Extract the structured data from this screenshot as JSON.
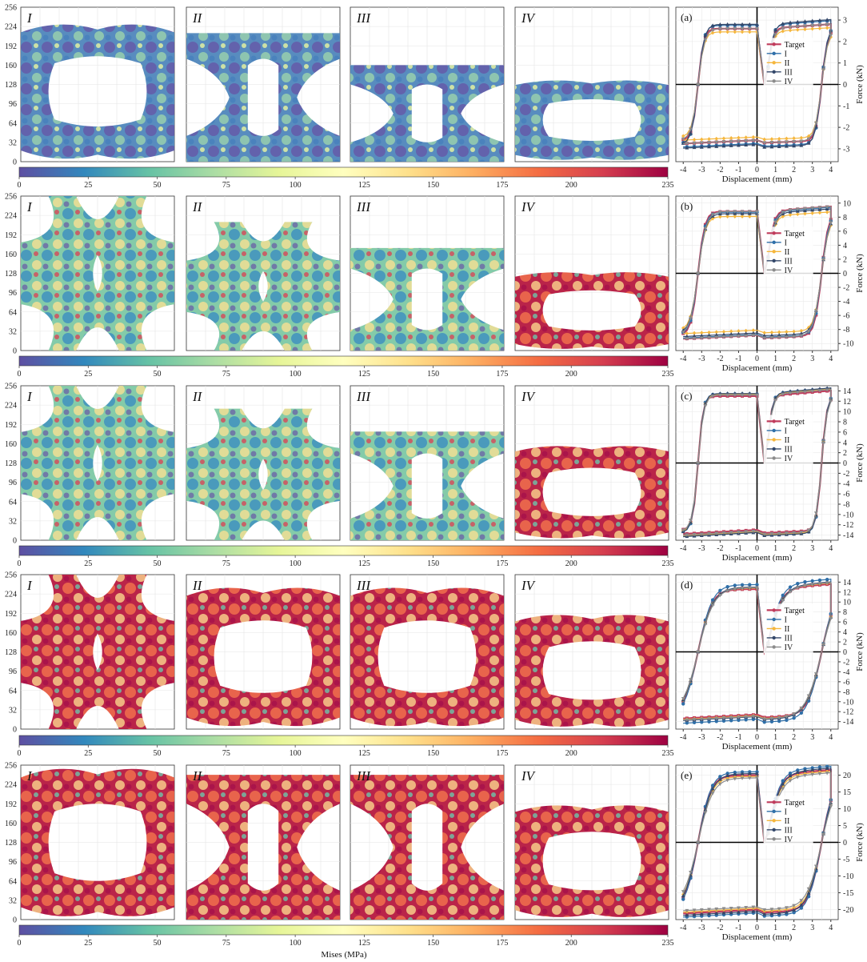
{
  "colorbar": {
    "label": "Mises (MPa)",
    "ticks": [
      0,
      25,
      50,
      75,
      100,
      125,
      150,
      175,
      200,
      235
    ],
    "stops": [
      "#5e4fa2",
      "#3288bd",
      "#66c2a5",
      "#abdda4",
      "#e6f598",
      "#ffffbf",
      "#fee08b",
      "#fdae61",
      "#f46d43",
      "#d53e4f",
      "#9e0142"
    ]
  },
  "panel_labels": [
    "I",
    "II",
    "III",
    "IV"
  ],
  "y_ticks_topology": [
    0,
    32,
    64,
    96,
    128,
    160,
    192,
    224,
    256
  ],
  "topologies": [
    [
      {
        "label": "I",
        "ymax": 233,
        "shape": "ring",
        "stress": "low"
      },
      {
        "label": "II",
        "ymax": 213,
        "shape": "xwaist",
        "stress": "low"
      },
      {
        "label": "III",
        "ymax": 160,
        "shape": "xwaist",
        "stress": "low"
      },
      {
        "label": "IV",
        "ymax": 138,
        "shape": "ring",
        "stress": "low"
      }
    ],
    [
      {
        "label": "I",
        "ymax": 256,
        "shape": "xcross",
        "stress": "mid"
      },
      {
        "label": "II",
        "ymax": 213,
        "shape": "xcross",
        "stress": "mid"
      },
      {
        "label": "III",
        "ymax": 170,
        "shape": "xwaist",
        "stress": "mid"
      },
      {
        "label": "IV",
        "ymax": 133,
        "shape": "ring",
        "stress": "high"
      }
    ],
    [
      {
        "label": "I",
        "ymax": 256,
        "shape": "xcross",
        "stress": "mid"
      },
      {
        "label": "II",
        "ymax": 218,
        "shape": "xcross",
        "stress": "mid"
      },
      {
        "label": "III",
        "ymax": 180,
        "shape": "xwaist",
        "stress": "mid"
      },
      {
        "label": "IV",
        "ymax": 160,
        "shape": "ring",
        "stress": "high"
      }
    ],
    [
      {
        "label": "I",
        "ymax": 256,
        "shape": "xcross",
        "stress": "high"
      },
      {
        "label": "II",
        "ymax": 240,
        "shape": "ring",
        "stress": "high"
      },
      {
        "label": "III",
        "ymax": 240,
        "shape": "ring",
        "stress": "high"
      },
      {
        "label": "IV",
        "ymax": 194,
        "shape": "ring",
        "stress": "high"
      }
    ],
    [
      {
        "label": "I",
        "ymax": 256,
        "shape": "ring",
        "stress": "high"
      },
      {
        "label": "II",
        "ymax": 240,
        "shape": "xwaist",
        "stress": "high"
      },
      {
        "label": "III",
        "ymax": 240,
        "shape": "xwaist",
        "stress": "high"
      },
      {
        "label": "IV",
        "ymax": 194,
        "shape": "ring",
        "stress": "high"
      }
    ]
  ],
  "chart_data": {
    "type": "line",
    "xlabel": "Displacement (mm)",
    "ylabel": "Force (kN)",
    "xlim": [
      -4.4,
      4.4
    ],
    "xticks": [
      -4,
      -3,
      -2,
      -1,
      0,
      1,
      2,
      3,
      4
    ],
    "legend": [
      "Target",
      "I",
      "II",
      "III",
      "IV"
    ],
    "series_colors": {
      "Target": "#c03c5c",
      "I": "#2f6fa8",
      "II": "#f5b63c",
      "III": "#34486a",
      "IV": "#8c8c8c"
    },
    "grid": true,
    "subplots": [
      {
        "label": "(a)",
        "yticks": [
          -3,
          -2,
          -1,
          0,
          1,
          2,
          3
        ],
        "ylim": [
          -3.6,
          3.6
        ],
        "forces": {
          "Target": 2.6,
          "I": 2.75,
          "II": 2.45,
          "III": 2.8,
          "IV": 2.6
        },
        "yield_disp": 0.5
      },
      {
        "label": "(b)",
        "yticks": [
          -10,
          -8,
          -6,
          -4,
          -2,
          0,
          2,
          4,
          6,
          8,
          10
        ],
        "ylim": [
          -11,
          11
        ],
        "forces": {
          "Target": 8.8,
          "I": 8.7,
          "II": 8.1,
          "III": 8.5,
          "IV": 8.8
        },
        "yield_disp": 0.6
      },
      {
        "label": "(c)",
        "yticks": [
          -14,
          -12,
          -10,
          -8,
          -6,
          -4,
          -2,
          0,
          2,
          4,
          6,
          8,
          10,
          12,
          14
        ],
        "ylim": [
          -15,
          15
        ],
        "forces": {
          "Target": 13.0,
          "I": 13.4,
          "II": 13.3,
          "III": 13.5,
          "IV": 13.2
        },
        "yield_disp": 0.45
      },
      {
        "label": "(d)",
        "yticks": [
          -14,
          -12,
          -10,
          -8,
          -6,
          -4,
          -2,
          0,
          2,
          4,
          6,
          8,
          10,
          12,
          14
        ],
        "ylim": [
          -15.5,
          15.5
        ],
        "forces": {
          "Target": 12.6,
          "I": 13.5,
          "II": 12.8,
          "III": 13.0,
          "IV": 12.9
        },
        "yield_disp": 1.2
      },
      {
        "label": "(e)",
        "yticks": [
          -20,
          -15,
          -10,
          -5,
          0,
          5,
          10,
          15,
          20
        ],
        "ylim": [
          -23,
          23
        ],
        "forces": {
          "Target": 20.0,
          "I": 21.0,
          "II": 19.6,
          "III": 20.5,
          "IV": 19.2
        },
        "yield_disp": 1.1
      }
    ]
  }
}
